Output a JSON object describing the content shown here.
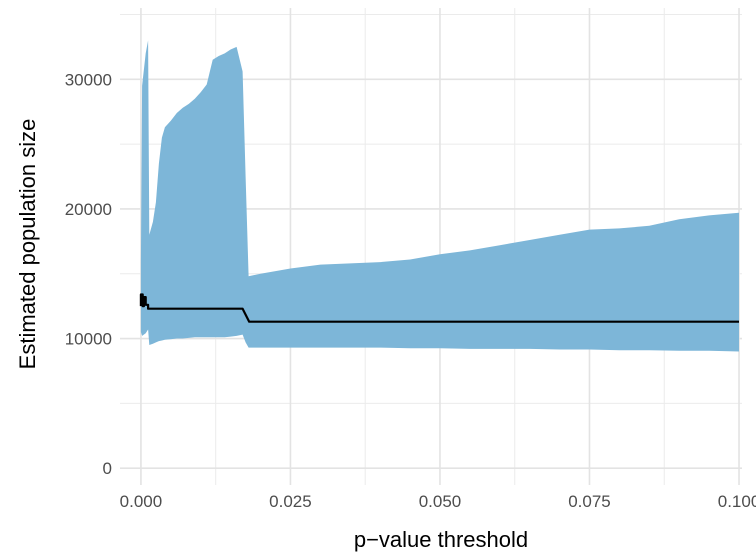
{
  "chart_data": {
    "type": "area",
    "title": "",
    "xlabel": "p−value threshold",
    "ylabel": "Estimated population size",
    "xlim": [
      -0.0035,
      0.1005
    ],
    "ylim": [
      -1300,
      35500
    ],
    "grid": true,
    "legend": "none",
    "x_ticks": [
      {
        "value": 0.0,
        "label": "0.000"
      },
      {
        "value": 0.025,
        "label": "0.025"
      },
      {
        "value": 0.05,
        "label": "0.050"
      },
      {
        "value": 0.075,
        "label": "0.075"
      },
      {
        "value": 0.1,
        "label": "0.100"
      }
    ],
    "y_ticks": [
      {
        "value": 0,
        "label": "0"
      },
      {
        "value": 10000,
        "label": "10000"
      },
      {
        "value": 20000,
        "label": "20000"
      },
      {
        "value": 30000,
        "label": "30000"
      }
    ],
    "series": [
      {
        "kind": "band",
        "color": "#7db6d8",
        "x": [
          0.0,
          0.0002,
          0.0008,
          0.0012,
          0.0014,
          0.002,
          0.0025,
          0.003,
          0.0035,
          0.004,
          0.005,
          0.006,
          0.007,
          0.008,
          0.009,
          0.01,
          0.011,
          0.012,
          0.013,
          0.014,
          0.015,
          0.016,
          0.017,
          0.0175,
          0.018,
          0.02,
          0.025,
          0.03,
          0.035,
          0.04,
          0.045,
          0.05,
          0.055,
          0.06,
          0.065,
          0.07,
          0.075,
          0.08,
          0.085,
          0.09,
          0.095,
          0.1
        ],
        "upper": [
          15800,
          29500,
          32000,
          33000,
          18000,
          19000,
          20500,
          23500,
          25500,
          26300,
          26800,
          27400,
          27800,
          28100,
          28500,
          29000,
          29600,
          31500,
          31800,
          32000,
          32300,
          32500,
          30600,
          22500,
          14800,
          15000,
          15400,
          15700,
          15800,
          15900,
          16100,
          16500,
          16800,
          17200,
          17600,
          18000,
          18400,
          18500,
          18700,
          19200,
          19500,
          19700
        ],
        "lower": [
          10500,
          10200,
          10400,
          10700,
          9500,
          9600,
          9700,
          9800,
          9850,
          9900,
          9950,
          10000,
          10000,
          10050,
          10100,
          10100,
          10100,
          10100,
          10100,
          10100,
          10150,
          10200,
          10300,
          9700,
          9300,
          9300,
          9300,
          9300,
          9300,
          9300,
          9250,
          9250,
          9200,
          9200,
          9200,
          9150,
          9150,
          9100,
          9100,
          9050,
          9050,
          9000
        ]
      },
      {
        "kind": "line",
        "color": "#000000",
        "x": [
          0.0,
          0.0,
          0.0003,
          0.0003,
          0.0005,
          0.0005,
          0.0008,
          0.0008,
          0.0012,
          0.0012,
          0.017,
          0.0181,
          0.1
        ],
        "y": [
          12500,
          13400,
          13400,
          12500,
          12500,
          13200,
          13200,
          12600,
          12600,
          12300,
          12300,
          11300,
          11300
        ]
      }
    ]
  }
}
